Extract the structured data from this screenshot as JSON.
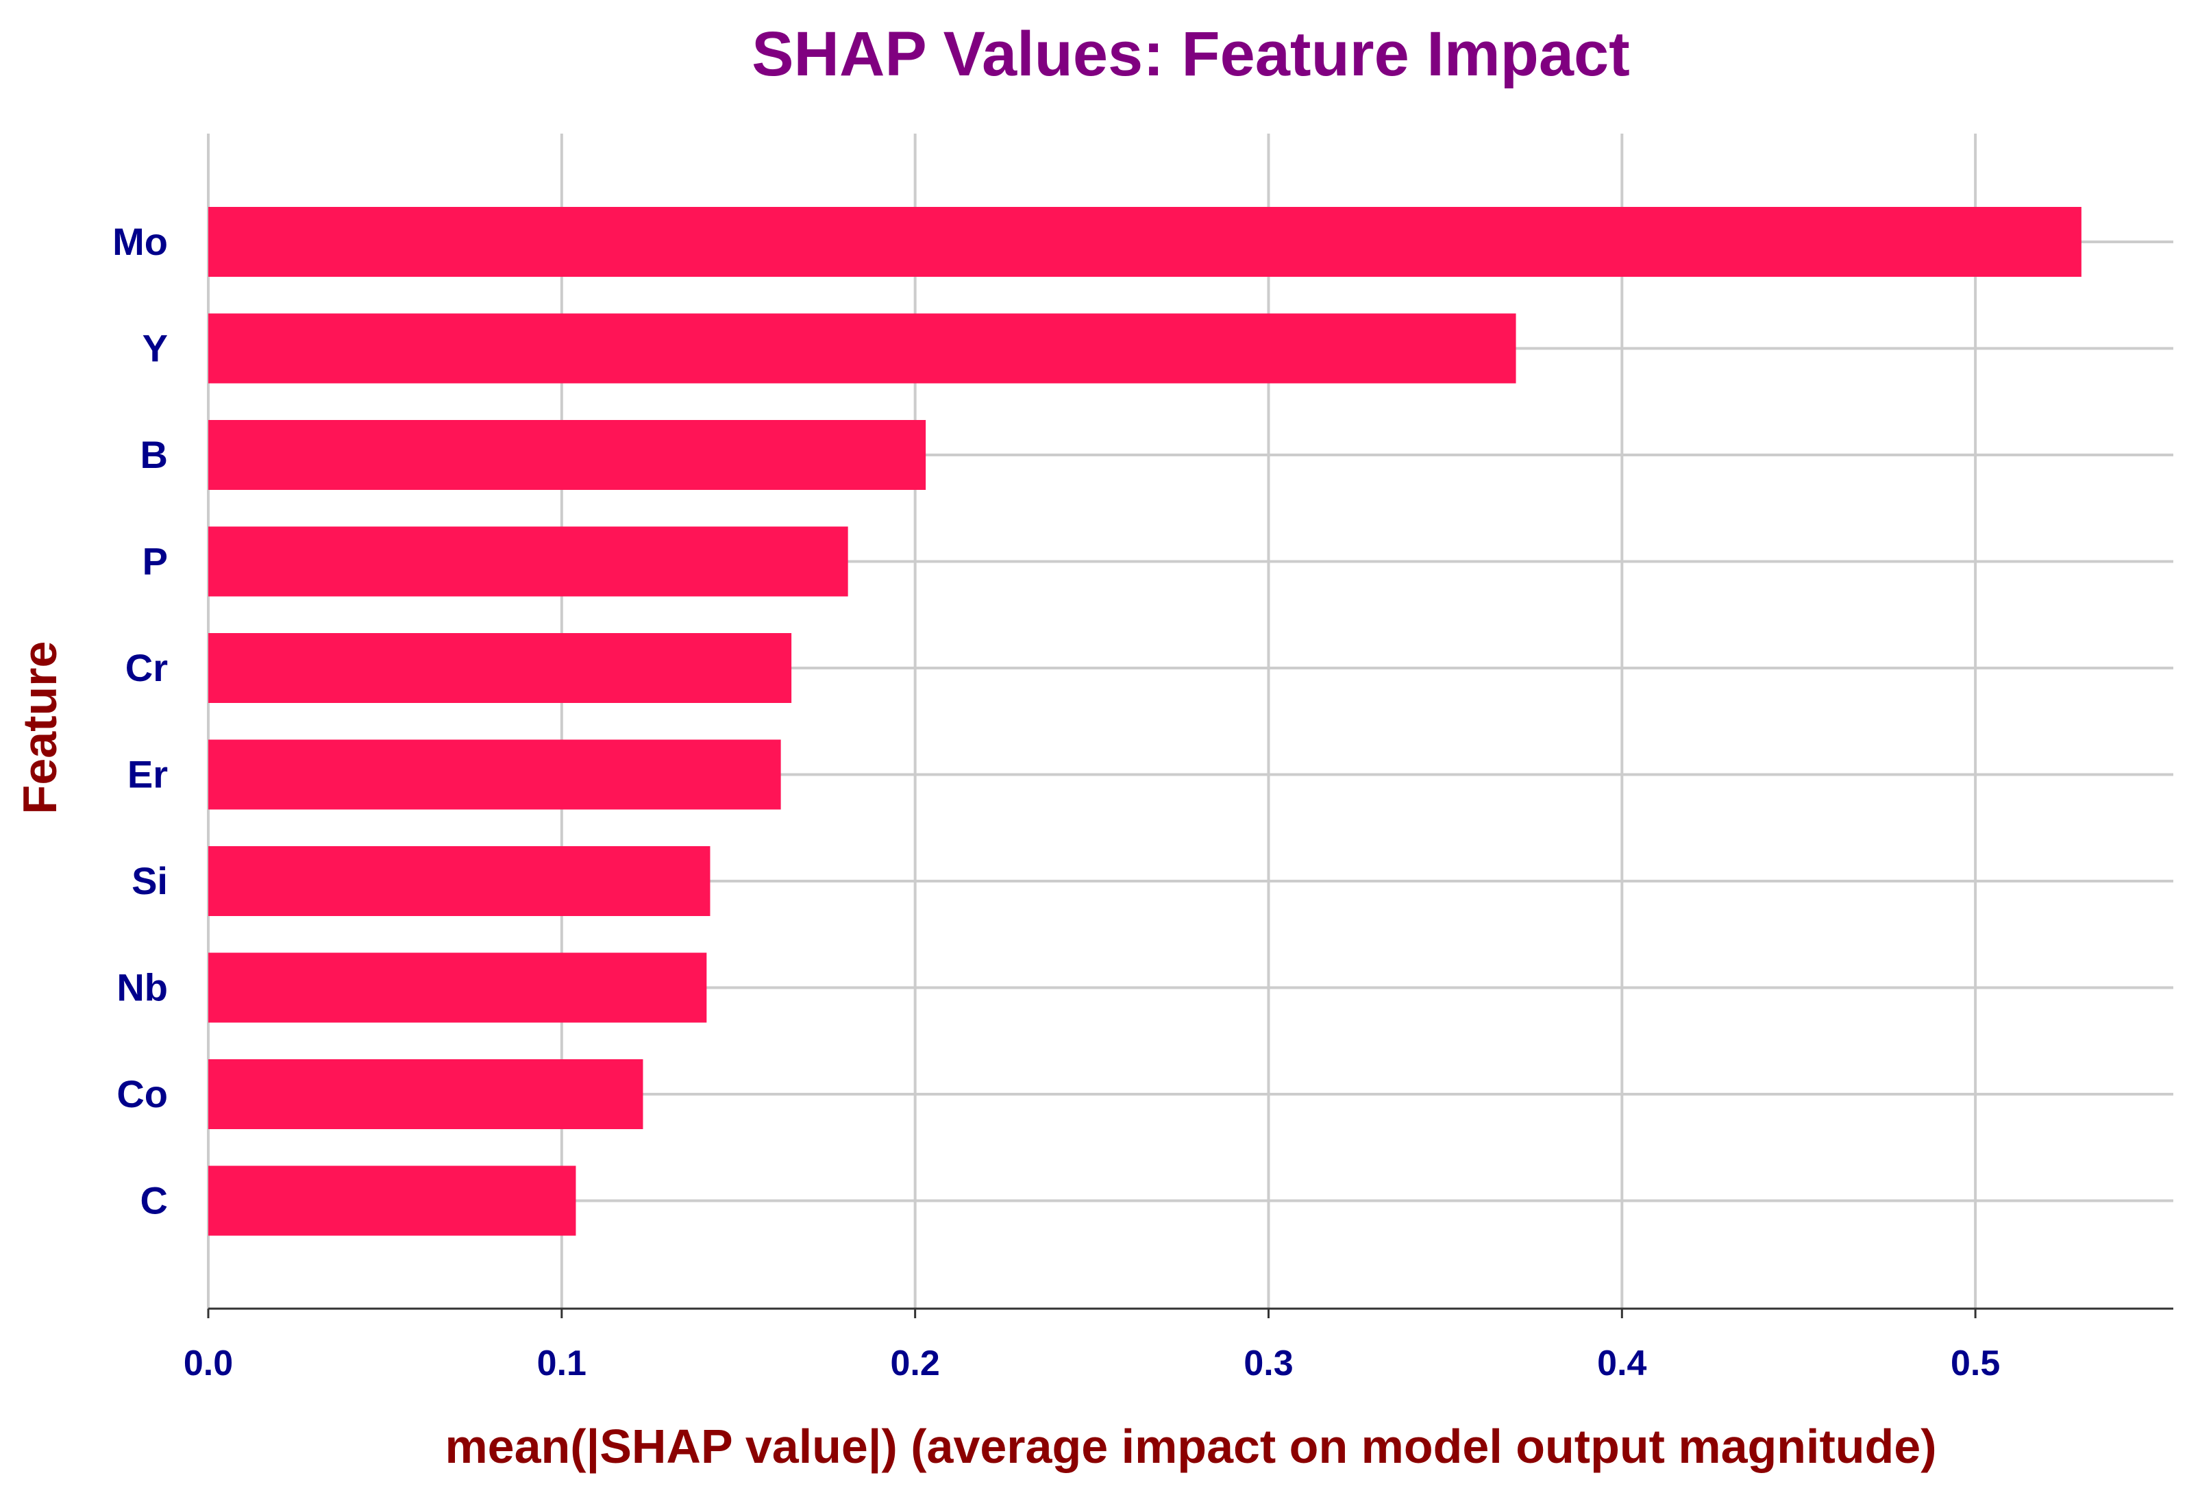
{
  "chart_data": {
    "type": "bar",
    "orientation": "horizontal",
    "title": "SHAP Values: Feature Impact",
    "xlabel": "mean(|SHAP value|) (average impact on model output magnitude)",
    "ylabel": "Feature",
    "categories": [
      "Mo",
      "Y",
      "B",
      "P",
      "Cr",
      "Er",
      "Si",
      "Nb",
      "Co",
      "C"
    ],
    "values": [
      0.53,
      0.37,
      0.203,
      0.181,
      0.165,
      0.162,
      0.142,
      0.141,
      0.123,
      0.104
    ],
    "xlim": [
      0.0,
      0.556
    ],
    "xticks": [
      "0.0",
      "0.1",
      "0.2",
      "0.3",
      "0.4",
      "0.5"
    ],
    "xtick_values": [
      0.0,
      0.1,
      0.2,
      0.3,
      0.4,
      0.5
    ],
    "grid": true,
    "colors": {
      "bar": "#ff1456",
      "title": "#800080",
      "axis_label": "#8b0000",
      "tick": "#00008b",
      "grid": "#cccccc"
    }
  }
}
